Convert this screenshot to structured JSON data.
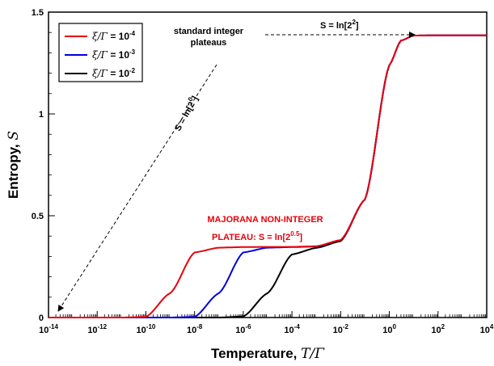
{
  "chart_data": {
    "type": "line",
    "xlabel_main": "Temperature, ",
    "xlabel_symbol": "T/Γ",
    "ylabel_main": "Entropy, ",
    "ylabel_symbol": "S",
    "x_scale": "log",
    "xlim": [
      1e-14,
      10000.0
    ],
    "ylim": [
      0,
      1.5
    ],
    "x_ticks": [
      {
        "base": "10",
        "exp": "-14"
      },
      {
        "base": "10",
        "exp": "-12"
      },
      {
        "base": "10",
        "exp": "-10"
      },
      {
        "base": "10",
        "exp": "-8"
      },
      {
        "base": "10",
        "exp": "-6"
      },
      {
        "base": "10",
        "exp": "-4"
      },
      {
        "base": "10",
        "exp": "-2"
      },
      {
        "base": "10",
        "exp": "0"
      },
      {
        "base": "10",
        "exp": "2"
      },
      {
        "base": "10",
        "exp": "4"
      }
    ],
    "y_ticks": [
      "0",
      "0.5",
      "1",
      "1.5"
    ],
    "grid": false,
    "legend_position": "top-left",
    "series": [
      {
        "name_symbol": "ξ/Γ",
        "name_rest": " = 10",
        "name_exp": "-4",
        "color": "#e8000b",
        "x": [
          1e-14,
          1e-11,
          1e-10,
          1e-09,
          1e-08,
          1e-07,
          1e-06,
          1e-05,
          0.0001,
          0.001,
          0.01,
          0.1,
          1,
          3,
          10,
          100,
          10000.0
        ],
        "y": [
          0,
          0,
          0.003,
          0.12,
          0.32,
          0.343,
          0.346,
          0.347,
          0.347,
          0.35,
          0.38,
          0.58,
          1.24,
          1.36,
          1.385,
          1.386,
          1.386
        ]
      },
      {
        "name_symbol": "ξ/Γ",
        "name_rest": " = 10",
        "name_exp": "-3",
        "color": "#0000e0",
        "x": [
          1e-14,
          1e-09,
          1e-08,
          1e-07,
          1e-06,
          1e-05,
          0.0001,
          0.001,
          0.01,
          0.1,
          1,
          3,
          10,
          100,
          10000.0
        ],
        "y": [
          0,
          0,
          0.003,
          0.12,
          0.32,
          0.343,
          0.346,
          0.349,
          0.38,
          0.58,
          1.24,
          1.36,
          1.385,
          1.386,
          1.386
        ]
      },
      {
        "name_symbol": "ξ/Γ",
        "name_rest": " = 10",
        "name_exp": "-2",
        "color": "#000000",
        "x": [
          1e-14,
          1e-07,
          1e-06,
          1e-05,
          0.0001,
          0.001,
          0.01,
          0.1,
          1,
          3,
          10,
          100,
          10000.0
        ],
        "y": [
          0,
          0,
          0.005,
          0.12,
          0.31,
          0.342,
          0.375,
          0.58,
          1.24,
          1.36,
          1.385,
          1.386,
          1.386
        ]
      }
    ],
    "annotations": {
      "standard_line1": "standard integer",
      "standard_line2": "plateaus",
      "top_label": "S = ln[2",
      "top_label_exp": "2",
      "top_label_end": "]",
      "diag_label": "S = ln[2",
      "diag_label_exp": "0",
      "diag_label_end": "]",
      "majorana_line1": "MAJORANA NON-INTEGER",
      "majorana_line2": "PLATEAU: S = ln[2",
      "majorana_exp": "0.5",
      "majorana_end": "]"
    }
  }
}
